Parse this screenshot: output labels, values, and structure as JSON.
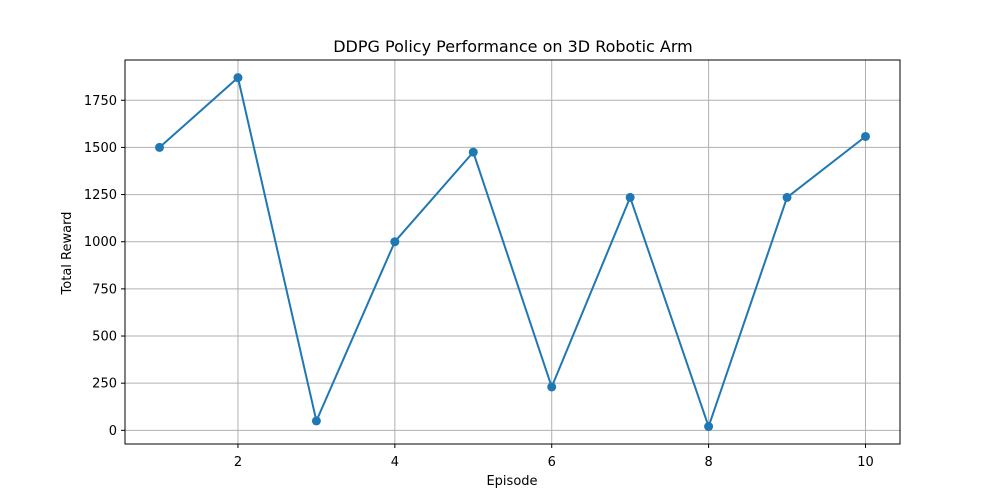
{
  "chart_data": {
    "type": "line",
    "title": "DDPG Policy Performance on 3D Robotic Arm",
    "xlabel": "Episode",
    "ylabel": "Total Reward",
    "x": [
      1,
      2,
      3,
      4,
      5,
      6,
      7,
      8,
      9,
      10
    ],
    "series": [
      {
        "values": [
          1500,
          1870,
          50,
          1000,
          1475,
          230,
          1235,
          20,
          1235,
          1558
        ],
        "color": "#1f77b4",
        "marker": "circle"
      }
    ],
    "xlim": [
      0.56,
      10.44
    ],
    "ylim": [
      -72.5,
      1963.5
    ],
    "xticks": [
      2,
      4,
      6,
      8,
      10
    ],
    "yticks": [
      0,
      250,
      500,
      750,
      1000,
      1250,
      1500,
      1750
    ],
    "grid": true
  }
}
